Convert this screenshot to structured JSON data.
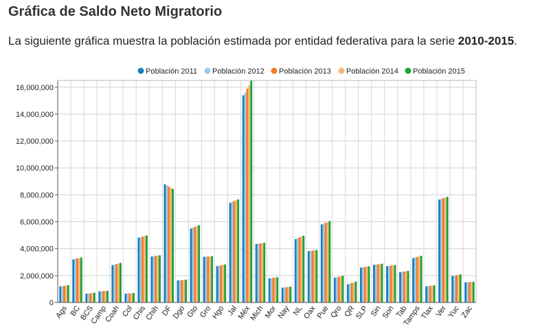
{
  "page": {
    "title": "Gráfica de Saldo Neto Migratorio",
    "description_prefix": "La siguiente gráfica muestra la población estimada por entidad federativa para la serie ",
    "description_bold": "2010-2015",
    "description_suffix": "."
  },
  "chart_data": {
    "type": "bar",
    "title": "",
    "xlabel": "",
    "ylabel": "",
    "ylim": [
      0,
      16500000
    ],
    "yticks": [
      0,
      2000000,
      4000000,
      6000000,
      8000000,
      10000000,
      12000000,
      14000000,
      16000000
    ],
    "ytick_labels": [
      "0",
      "2,000,000",
      "4,000,000",
      "6,000,000",
      "8,000,000",
      "10,000,000",
      "12,000,000",
      "14,000,000",
      "16,000,000"
    ],
    "grid": true,
    "legend_position": "top",
    "categories": [
      "Ags",
      "BC",
      "BCS",
      "Camp",
      "Coah",
      "Col",
      "Chis",
      "Chih",
      "DF",
      "Dgo",
      "Gto",
      "Gro",
      "Hgo",
      "Jal",
      "Méx",
      "Mich",
      "Mor",
      "Nay",
      "NL",
      "Oax",
      "Pue",
      "Qro",
      "QR",
      "SLP",
      "Sin",
      "Son",
      "Tab",
      "Tamps",
      "Tlax",
      "Ver",
      "Yuc",
      "Zac"
    ],
    "series": [
      {
        "name": "Población 2011",
        "color": "#1a7fbd",
        "values": [
          1200000,
          3200000,
          650000,
          830000,
          2780000,
          660000,
          4820000,
          3420000,
          8780000,
          1640000,
          5500000,
          3400000,
          2700000,
          7400000,
          15400000,
          4350000,
          1800000,
          1100000,
          4700000,
          3820000,
          5800000,
          1850000,
          1350000,
          2600000,
          2800000,
          2700000,
          2250000,
          3300000,
          1200000,
          7650000,
          1970000,
          1500000
        ]
      },
      {
        "name": "Población 2012",
        "color": "#9ec9ea",
        "values": [
          1220000,
          3250000,
          670000,
          840000,
          2820000,
          670000,
          4860000,
          3450000,
          8700000,
          1660000,
          5560000,
          3410000,
          2740000,
          7480000,
          15600000,
          4370000,
          1820000,
          1120000,
          4780000,
          3840000,
          5870000,
          1880000,
          1400000,
          2620000,
          2820000,
          2720000,
          2280000,
          3350000,
          1220000,
          7700000,
          2000000,
          1510000
        ]
      },
      {
        "name": "Población 2013",
        "color": "#f57c22",
        "values": [
          1240000,
          3280000,
          690000,
          850000,
          2860000,
          680000,
          4900000,
          3470000,
          8620000,
          1670000,
          5620000,
          3420000,
          2770000,
          7540000,
          15900000,
          4390000,
          1840000,
          1140000,
          4840000,
          3860000,
          5920000,
          1910000,
          1450000,
          2640000,
          2840000,
          2740000,
          2300000,
          3390000,
          1240000,
          7750000,
          2030000,
          1520000
        ]
      },
      {
        "name": "Población 2014",
        "color": "#f8b77c",
        "values": [
          1260000,
          3310000,
          710000,
          860000,
          2900000,
          690000,
          4940000,
          3490000,
          8540000,
          1680000,
          5680000,
          3430000,
          2800000,
          7600000,
          16150000,
          4410000,
          1860000,
          1160000,
          4900000,
          3880000,
          5980000,
          1940000,
          1500000,
          2660000,
          2860000,
          2760000,
          2320000,
          3430000,
          1260000,
          7800000,
          2060000,
          1530000
        ]
      },
      {
        "name": "Población 2015",
        "color": "#1aa33a",
        "values": [
          1290000,
          3350000,
          730000,
          870000,
          2940000,
          710000,
          4980000,
          3510000,
          8440000,
          1700000,
          5740000,
          3440000,
          2830000,
          7660000,
          16500000,
          4430000,
          1880000,
          1180000,
          4960000,
          3900000,
          6060000,
          1980000,
          1560000,
          2690000,
          2880000,
          2780000,
          2350000,
          3470000,
          1280000,
          7850000,
          2090000,
          1540000
        ]
      }
    ]
  }
}
